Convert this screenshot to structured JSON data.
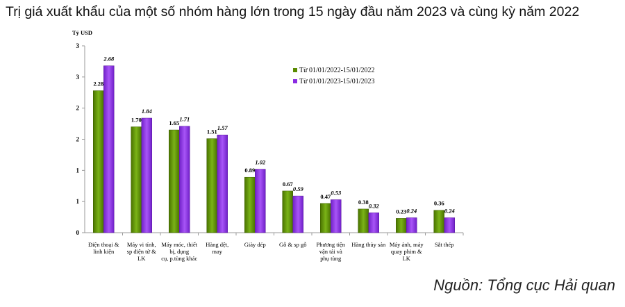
{
  "chart_data": {
    "type": "bar",
    "title": "Trị giá xuất khẩu của một số nhóm hàng lớn trong 15 ngày đầu năm 2023 và cùng kỳ năm 2022",
    "ylabel": "Tỷ USD",
    "ylim": [
      0,
      3
    ],
    "yticks": [
      0,
      0.5,
      1,
      1.5,
      2,
      2.5,
      3
    ],
    "ytick_labels": [
      "0",
      "1",
      "1",
      "2",
      "2",
      "3",
      "3"
    ],
    "categories": [
      [
        "Điện thoại &",
        "linh kiện"
      ],
      [
        "Máy vi tính,",
        "sp điện tử &",
        "LK"
      ],
      [
        "Máy móc, thiết",
        "bị, dụng",
        "cụ, p.tùng khác"
      ],
      [
        "Hàng dệt,",
        "may"
      ],
      [
        "Giày dép"
      ],
      [
        "Gỗ & sp gỗ"
      ],
      [
        "Phương tiện",
        "vận tải và",
        "phụ tùng"
      ],
      [
        "Hàng thủy sản"
      ],
      [
        "Máy ảnh, máy",
        "quay phim &",
        "LK"
      ],
      [
        "Sắt thép"
      ]
    ],
    "series": [
      {
        "name": "Từ 01/01/2022-15/01/2022",
        "color": "#5a8a00",
        "values": [
          2.28,
          1.7,
          1.65,
          1.51,
          0.89,
          0.67,
          0.47,
          0.38,
          0.23,
          0.36
        ],
        "labels": [
          "2.28",
          "1.70",
          "1.65",
          "1.51",
          "0.89",
          "0.67",
          "0.47",
          "0.38",
          "0.23",
          "0.36"
        ]
      },
      {
        "name": "Từ 01/01/2023-15/01/2023",
        "color": "#8a2be2",
        "values": [
          2.68,
          1.84,
          1.71,
          1.57,
          1.02,
          0.59,
          0.53,
          0.32,
          0.24,
          0.24
        ],
        "labels": [
          "2.68",
          "1.84",
          "1.71",
          "1.57",
          "1.02",
          "0.59",
          "0.53",
          "0.32",
          "0.24",
          "0.24"
        ]
      }
    ],
    "legend_position": "top-right",
    "grid": false
  },
  "source": "Nguồn: Tổng cục Hải quan"
}
